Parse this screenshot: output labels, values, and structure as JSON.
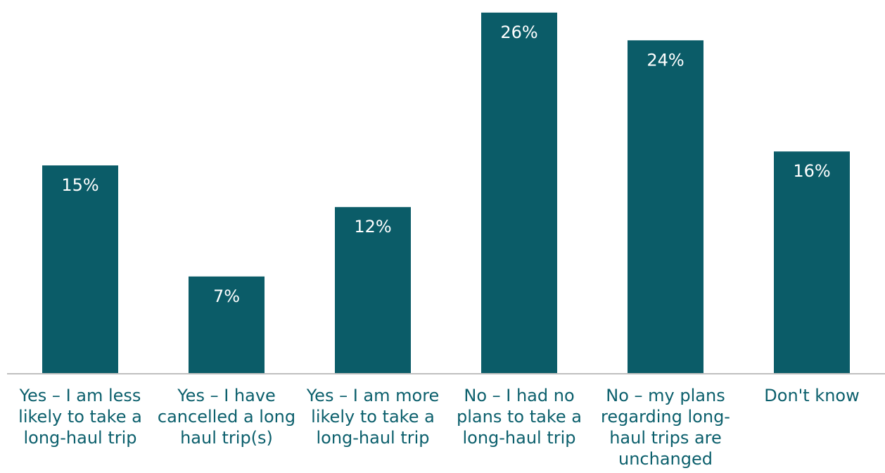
{
  "colors": {
    "bar": "#0b5c68",
    "axis": "#bfbfbf",
    "label": "#0b5f6c",
    "value_label": "#ffffff"
  },
  "chart_data": {
    "type": "bar",
    "title": "",
    "xlabel": "",
    "ylabel": "",
    "categories": [
      "Yes – I am less likely to take a long-haul trip",
      "Yes – I have cancelled a long haul trip(s)",
      "Yes – I am more likely to take a long-haul trip",
      "No – I had no plans to take a long-haul trip",
      "No – my plans regarding long-haul trips are unchanged",
      "Don't know"
    ],
    "category_lines": [
      [
        "Yes – I am less",
        "likely to take a",
        "long-haul trip"
      ],
      [
        "Yes – I have",
        "cancelled a long",
        "haul trip(s)"
      ],
      [
        "Yes – I am more",
        "likely to take a",
        "long-haul trip"
      ],
      [
        "No – I had no",
        "plans to take a",
        "long-haul trip"
      ],
      [
        "No – my plans",
        "regarding long-",
        "haul trips are",
        "unchanged"
      ],
      [
        "Don't know"
      ]
    ],
    "values": [
      15,
      7,
      12,
      26,
      24,
      16
    ],
    "data_labels": [
      "15%",
      "7%",
      "12%",
      "26%",
      "24%",
      "16%"
    ],
    "unit": "%",
    "ylim": [
      0,
      26.5
    ],
    "grid": false,
    "legend": "none"
  }
}
